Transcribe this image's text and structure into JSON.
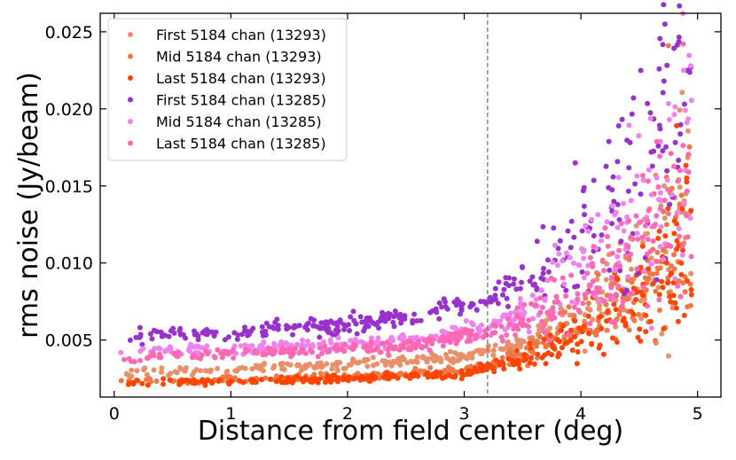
{
  "chart_data": {
    "type": "scatter",
    "title": "",
    "xlabel": "Distance from field center (deg)",
    "ylabel": "rms noise (Jy/beam)",
    "xlim": [
      -0.12,
      5.2
    ],
    "ylim": [
      0.0013,
      0.0262
    ],
    "xticks": [
      {
        "value": 0,
        "label": "0"
      },
      {
        "value": 1,
        "label": "1"
      },
      {
        "value": 2,
        "label": "2"
      },
      {
        "value": 3,
        "label": "3"
      },
      {
        "value": 4,
        "label": "4"
      },
      {
        "value": 5,
        "label": "5"
      }
    ],
    "yticks": [
      {
        "value": 0.005,
        "label": "0.005"
      },
      {
        "value": 0.01,
        "label": "0.010"
      },
      {
        "value": 0.015,
        "label": "0.015"
      },
      {
        "value": 0.02,
        "label": "0.020"
      },
      {
        "value": 0.025,
        "label": "0.025"
      }
    ],
    "vline": {
      "x": 3.2,
      "style": "dashed",
      "color": "#777777"
    },
    "legend_position": "top-left",
    "series": [
      {
        "name": "First 5184 chan (13293)",
        "color": "#E9906A",
        "trend": {
          "x": [
            0,
            1,
            2,
            3,
            3.5,
            4,
            4.5,
            4.95
          ],
          "y": [
            0.0029,
            0.0031,
            0.0034,
            0.0039,
            0.0048,
            0.007,
            0.01,
            0.0135
          ]
        },
        "max_point": {
          "x": 4.9,
          "y": 0.0145
        }
      },
      {
        "name": "Mid 5184 chan (13293)",
        "color": "#F07848",
        "trend": {
          "x": [
            0,
            1,
            2,
            3,
            3.5,
            4,
            4.5,
            4.95
          ],
          "y": [
            0.0023,
            0.0024,
            0.0026,
            0.003,
            0.004,
            0.006,
            0.009,
            0.012
          ]
        },
        "max_point": {
          "x": 4.75,
          "y": 0.0241
        }
      },
      {
        "name": "Last 5184 chan (13293)",
        "color": "#FF4500",
        "trend": {
          "x": [
            0,
            1,
            2,
            3,
            3.5,
            4,
            4.5,
            4.95
          ],
          "y": [
            0.0022,
            0.0023,
            0.0025,
            0.0028,
            0.0038,
            0.0055,
            0.008,
            0.011
          ]
        },
        "max_point": {
          "x": 4.82,
          "y": 0.0189
        }
      },
      {
        "name": "First 5184 chan (13285)",
        "color": "#9932CC",
        "trend": {
          "x": [
            0,
            1,
            2,
            2.7,
            3.2,
            3.6,
            4,
            4.5,
            4.9
          ],
          "y": [
            0.0052,
            0.0055,
            0.006,
            0.0068,
            0.0076,
            0.0092,
            0.012,
            0.016,
            0.0205
          ]
        },
        "max_point": {
          "x": 4.72,
          "y": 0.0255
        }
      },
      {
        "name": "Mid 5184 chan (13285)",
        "color": "#EE82EE",
        "trend": {
          "x": [
            0,
            1,
            2,
            2.7,
            3.2,
            3.6,
            4,
            4.5,
            4.9
          ],
          "y": [
            0.0042,
            0.0044,
            0.0047,
            0.0051,
            0.0058,
            0.0072,
            0.0095,
            0.013,
            0.018
          ]
        },
        "max_point": {
          "x": 4.88,
          "y": 0.0225
        }
      },
      {
        "name": "Last 5184 chan (13285)",
        "color": "#FF69B4",
        "trend": {
          "x": [
            0,
            1,
            2,
            2.7,
            3.2,
            3.6,
            4,
            4.5,
            4.9
          ],
          "y": [
            0.0039,
            0.0041,
            0.0044,
            0.0048,
            0.0054,
            0.0065,
            0.0085,
            0.011,
            0.015
          ]
        },
        "max_point": {
          "x": 4.85,
          "y": 0.016
        }
      }
    ]
  }
}
